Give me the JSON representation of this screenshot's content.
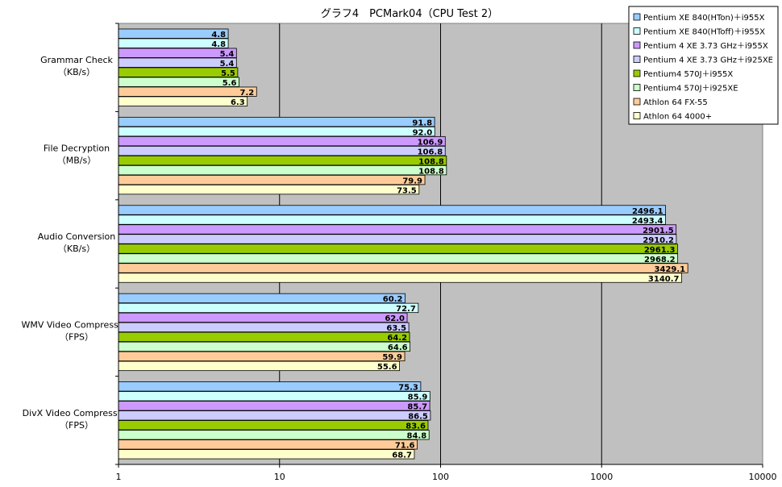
{
  "chart_data": {
    "type": "bar",
    "orientation": "horizontal",
    "title": "グラフ4　PCMark04（CPU Test 2）",
    "xscale": "log",
    "xlim": [
      1,
      10000
    ],
    "xticks": [
      "1",
      "10",
      "100",
      "1000",
      "10000"
    ],
    "grid": true,
    "legend_position": "top-right",
    "categories": [
      [
        "Grammar Check",
        "（KB/s）"
      ],
      [
        "File Decryption",
        "（MB/s）"
      ],
      [
        "Audio Conversion",
        "（KB/s）"
      ],
      [
        "WMV Video Compression",
        "（FPS）"
      ],
      [
        "DivX Video Compression",
        "（FPS）"
      ]
    ],
    "series": [
      {
        "name": "Pentium XE 840(HTon)＋i955X",
        "color": "#99CCFF",
        "values": [
          4.8,
          91.8,
          2496.1,
          60.2,
          75.3
        ],
        "labels": [
          "4.8",
          "91.8",
          "2496.1",
          "60.2",
          "75.3"
        ]
      },
      {
        "name": "Pentium XE 840(HToff)＋i955X",
        "color": "#CCFFFF",
        "values": [
          4.8,
          92.0,
          2493.4,
          72.7,
          85.9
        ],
        "labels": [
          "4.8",
          "92.0",
          "2493.4",
          "72.7",
          "85.9"
        ]
      },
      {
        "name": "Pentium 4 XE 3.73 GHz＋i955X",
        "color": "#CC99FF",
        "values": [
          5.4,
          106.9,
          2901.5,
          62.0,
          85.7
        ],
        "labels": [
          "5.4",
          "106.9",
          "2901.5",
          "62.0",
          "85.7"
        ]
      },
      {
        "name": "Pentium 4 XE 3.73 GHz＋i925XE",
        "color": "#CCCCFF",
        "values": [
          5.4,
          106.8,
          2910.2,
          63.5,
          86.5
        ],
        "labels": [
          "5.4",
          "106.8",
          "2910.2",
          "63.5",
          "86.5"
        ]
      },
      {
        "name": "Pentium4 570J＋i955X",
        "color": "#99CC00",
        "values": [
          5.5,
          108.8,
          2961.3,
          64.2,
          83.6
        ],
        "labels": [
          "5.5",
          "108.8",
          "2961.3",
          "64.2",
          "83.6"
        ]
      },
      {
        "name": "Pentium4 570J＋i925XE",
        "color": "#CCFFCC",
        "values": [
          5.6,
          108.8,
          2968.2,
          64.6,
          84.8
        ],
        "labels": [
          "5.6",
          "108.8",
          "2968.2",
          "64.6",
          "84.8"
        ]
      },
      {
        "name": "Athlon 64 FX-55",
        "color": "#FFCC99",
        "values": [
          7.2,
          79.9,
          3429.1,
          59.9,
          71.6
        ],
        "labels": [
          "7.2",
          "79.9",
          "3429.1",
          "59.9",
          "71.6"
        ]
      },
      {
        "name": "Athlon 64 4000+",
        "color": "#FFFFCC",
        "values": [
          6.3,
          73.5,
          3140.7,
          55.6,
          68.7
        ],
        "labels": [
          "6.3",
          "73.5",
          "3140.7",
          "55.6",
          "68.7"
        ]
      }
    ]
  }
}
